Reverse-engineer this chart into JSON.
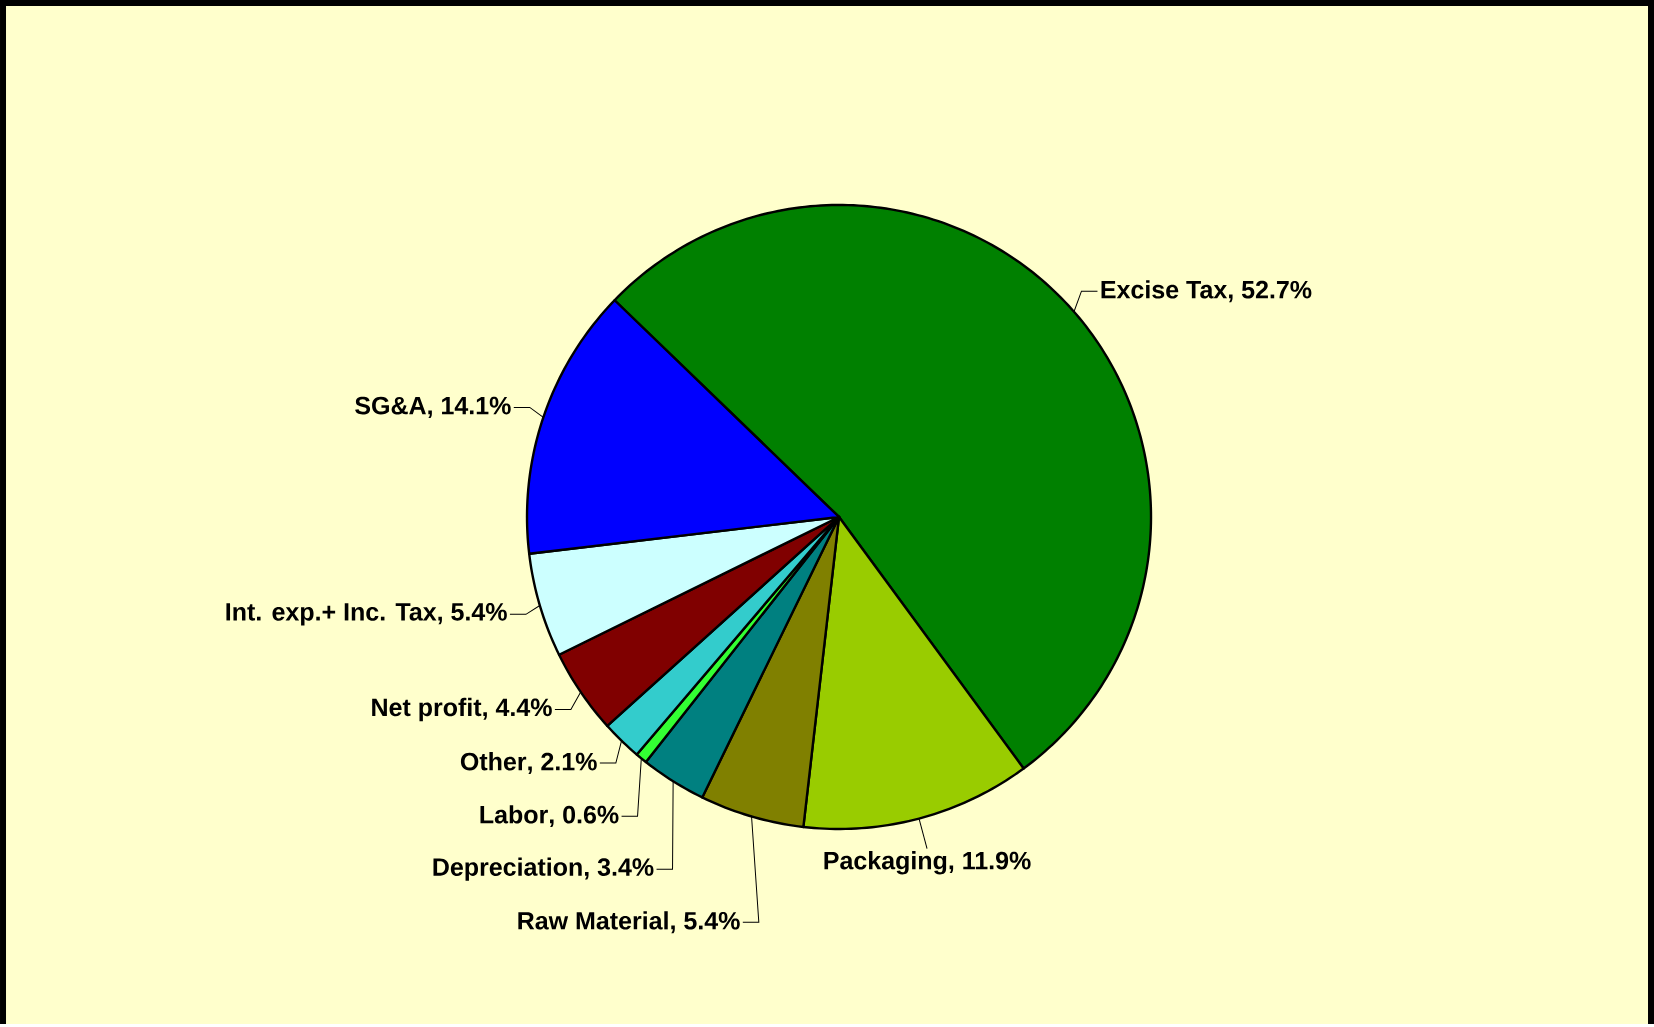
{
  "chart_data": {
    "type": "pie",
    "categories": [
      "Excise Tax",
      "Packaging",
      "Raw Material",
      "Depreciation",
      "Labor",
      "Other",
      "Net profit",
      "Int. exp.+ Inc. Tax",
      "SG&A"
    ],
    "values": [
      52.7,
      11.9,
      5.4,
      3.4,
      0.6,
      2.1,
      4.4,
      5.4,
      14.1
    ],
    "colors": [
      "#008000",
      "#99cc00",
      "#808000",
      "#008080",
      "#33ff33",
      "#33cccc",
      "#800000",
      "#ccffff",
      "#0000ff"
    ],
    "value_labels": [
      ", 52.7%",
      ", 11.9%",
      ", 5.4%",
      ", 3.4%",
      ", 0.6%",
      ", 2.1%",
      ", 4.4%",
      ", 5.4%",
      ", 14.1%"
    ]
  }
}
